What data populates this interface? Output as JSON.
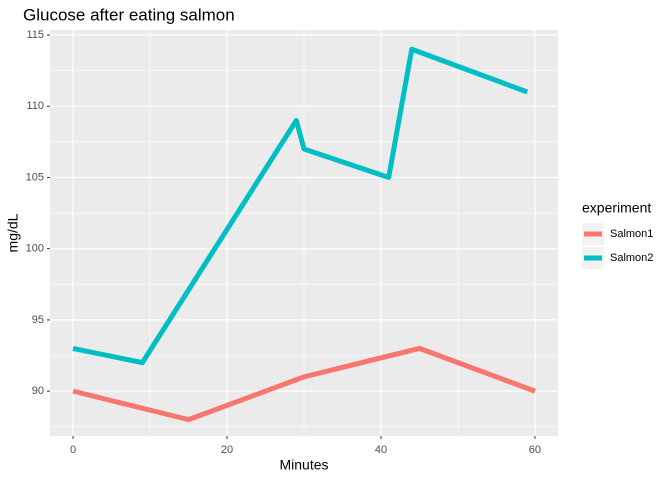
{
  "chart_data": {
    "type": "line",
    "title": "Glucose after eating salmon",
    "x_label": "Minutes",
    "y_label": "mg/dL",
    "legend_title": "experiment",
    "series": [
      {
        "name": "Salmon1",
        "color": "#F8766D",
        "x": [
          0,
          15,
          30,
          45,
          60
        ],
        "values": [
          90,
          88,
          91,
          93,
          90
        ]
      },
      {
        "name": "Salmon2",
        "color": "#00BFC4",
        "x": [
          0,
          9,
          29,
          30,
          41,
          44,
          59
        ],
        "values": [
          93,
          92,
          109,
          107,
          105,
          114,
          111
        ]
      }
    ],
    "xlim": [
      -3,
      63
    ],
    "xticks": [
      0,
      20,
      40,
      60
    ],
    "ylim": [
      86.85,
      115.35
    ],
    "yticks": [
      90,
      95,
      100,
      105,
      110,
      115
    ],
    "grid": true,
    "legend": "right"
  }
}
